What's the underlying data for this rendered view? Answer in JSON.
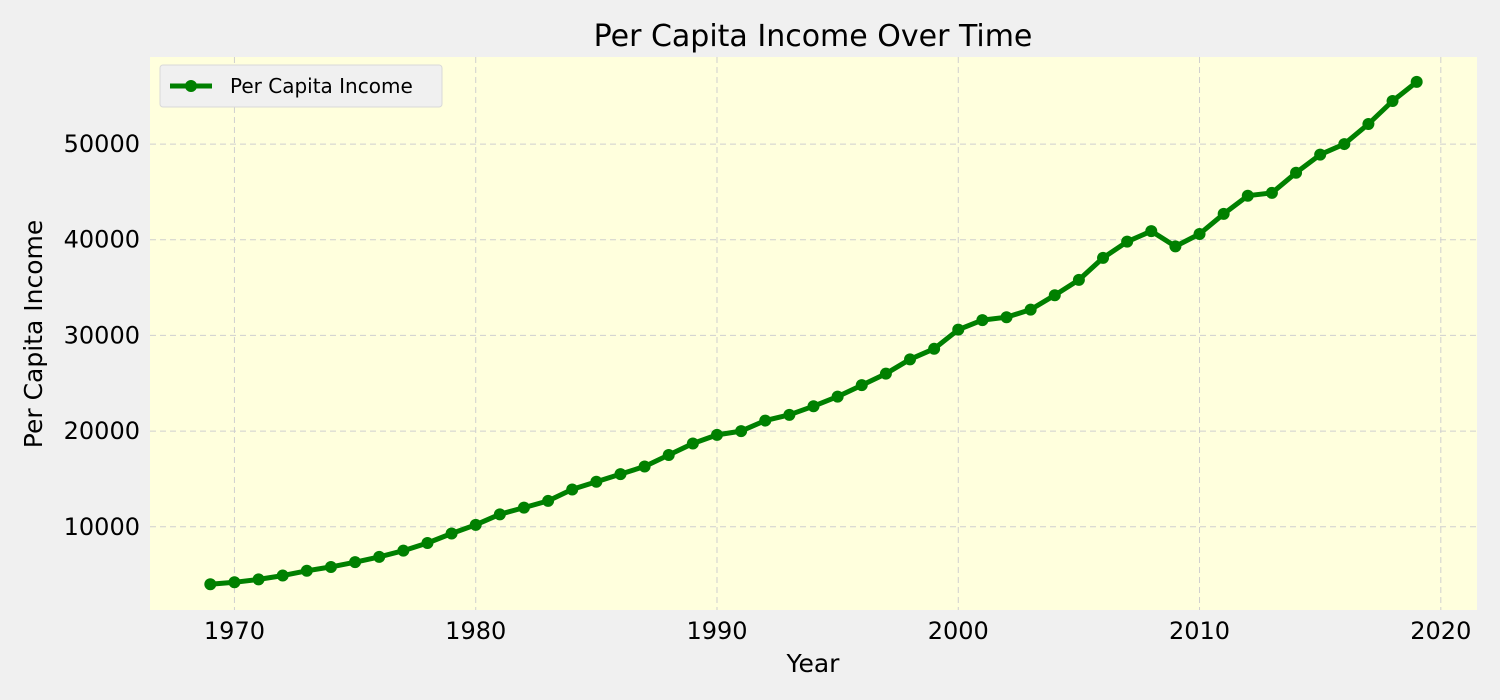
{
  "chart_data": {
    "type": "line",
    "title": "Per Capita Income Over Time",
    "xlabel": "Year",
    "ylabel": "Per Capita Income",
    "xlim": [
      1966.5,
      2021.5
    ],
    "ylim": [
      1300,
      59100
    ],
    "xticks": [
      1970,
      1980,
      1990,
      2000,
      2010,
      2020
    ],
    "yticks": [
      10000,
      20000,
      30000,
      40000,
      50000
    ],
    "grid": true,
    "legend_position": "top-left",
    "background_color": "#ffffdd",
    "series": [
      {
        "name": "Per Capita Income",
        "color": "#008000",
        "marker": "circle",
        "x": [
          1969,
          1970,
          1971,
          1972,
          1973,
          1974,
          1975,
          1976,
          1977,
          1978,
          1979,
          1980,
          1981,
          1982,
          1983,
          1984,
          1985,
          1986,
          1987,
          1988,
          1989,
          1990,
          1991,
          1992,
          1993,
          1994,
          1995,
          1996,
          1997,
          1998,
          1999,
          2000,
          2001,
          2002,
          2003,
          2004,
          2005,
          2006,
          2007,
          2008,
          2009,
          2010,
          2011,
          2012,
          2013,
          2014,
          2015,
          2016,
          2017,
          2018,
          2019
        ],
        "y": [
          3990,
          4200,
          4500,
          4900,
          5400,
          5800,
          6300,
          6850,
          7500,
          8300,
          9300,
          10200,
          11300,
          12000,
          12700,
          13900,
          14700,
          15500,
          16300,
          17500,
          18700,
          19600,
          20000,
          21100,
          21700,
          22600,
          23600,
          24800,
          26000,
          27500,
          28600,
          30600,
          31600,
          31900,
          32700,
          34200,
          35800,
          38100,
          39800,
          40900,
          39300,
          40600,
          42700,
          44600,
          44900,
          47000,
          48900,
          50000,
          52100,
          54500,
          56500
        ]
      }
    ]
  }
}
